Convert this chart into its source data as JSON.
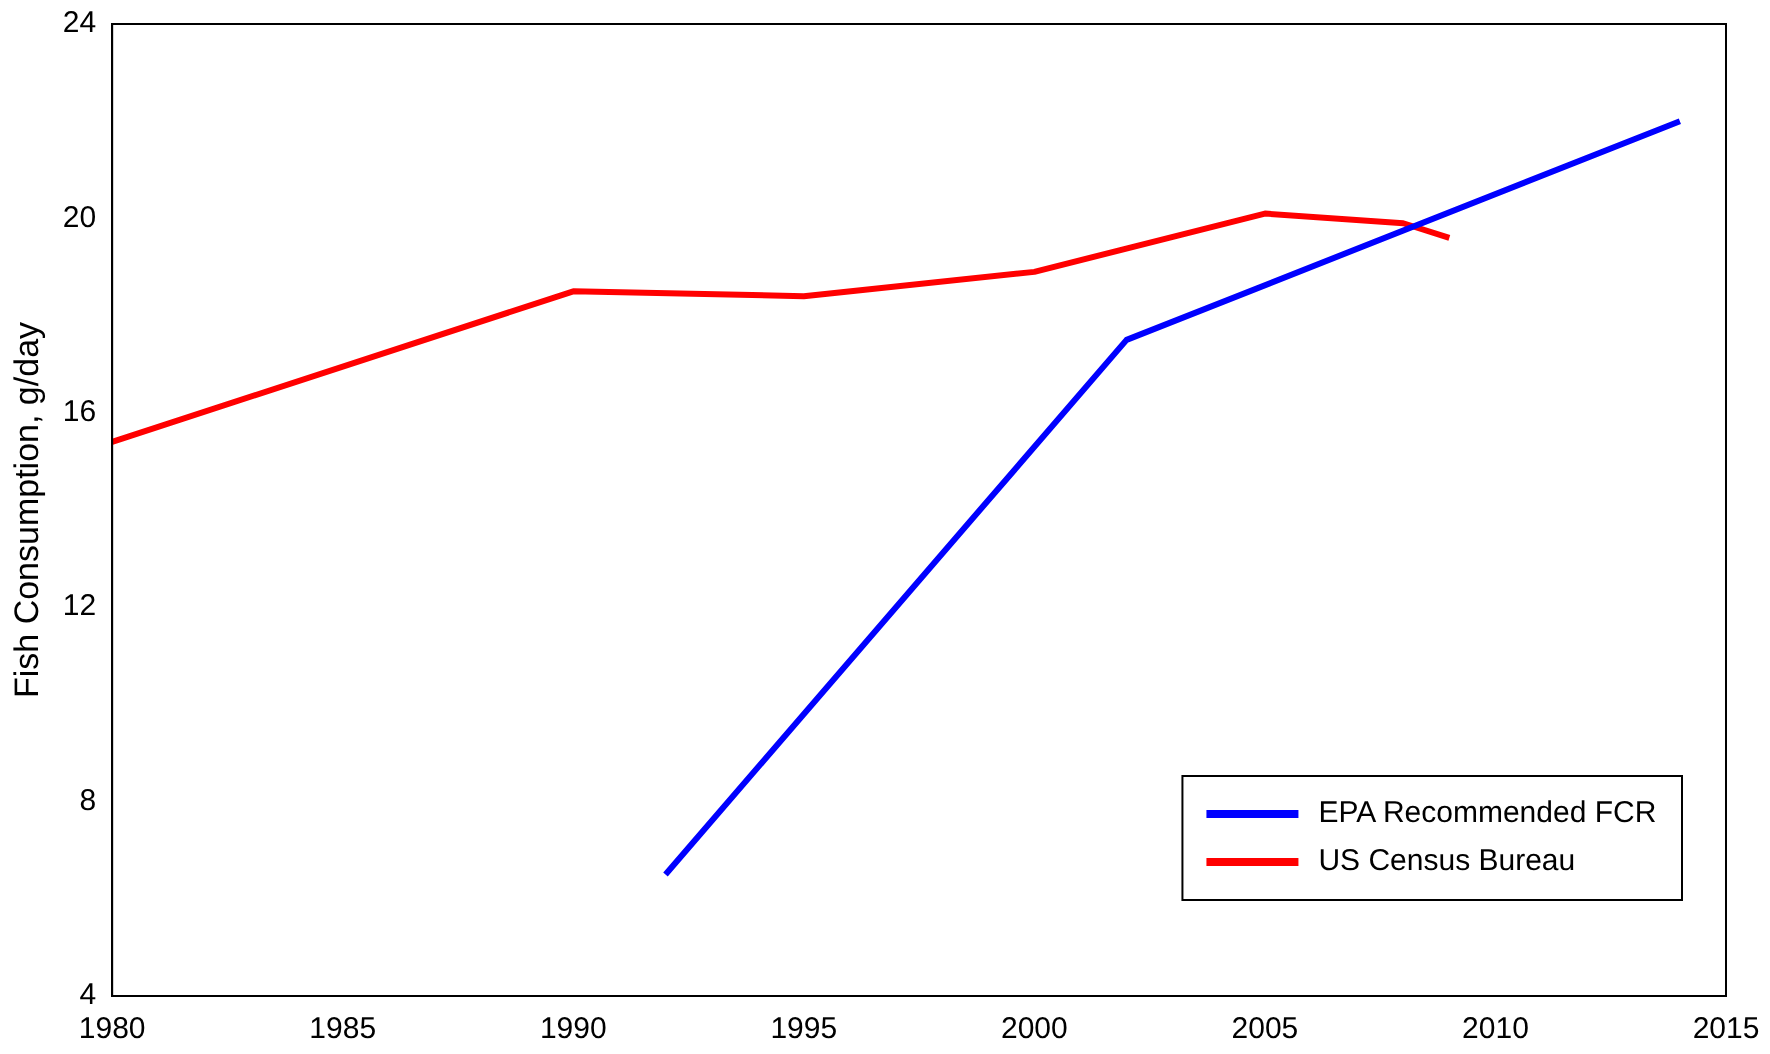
{
  "chart_data": {
    "type": "line",
    "ylabel": "Fish Consumption, g/day",
    "xlim": [
      1980,
      2015
    ],
    "xticks": [
      1980,
      1985,
      1990,
      1995,
      2000,
      2005,
      2010,
      2015
    ],
    "ylim": [
      4,
      24
    ],
    "yticks": [
      4,
      8,
      12,
      16,
      20,
      24
    ],
    "grid": false,
    "legend": "bottom right",
    "marker": "none",
    "line_style": "solid",
    "series": [
      {
        "name": "EPA Recommended FCR",
        "color": "#0000ff",
        "x": [
          1992,
          2002,
          2014
        ],
        "values": [
          6.5,
          17.5,
          22.0
        ]
      },
      {
        "name": "US Census Bureau",
        "color": "#ff0000",
        "x": [
          1980,
          1990,
          1995,
          2000,
          2005,
          2008,
          2009
        ],
        "values": [
          15.4,
          18.5,
          18.4,
          18.9,
          20.1,
          19.9,
          19.6
        ]
      }
    ]
  }
}
